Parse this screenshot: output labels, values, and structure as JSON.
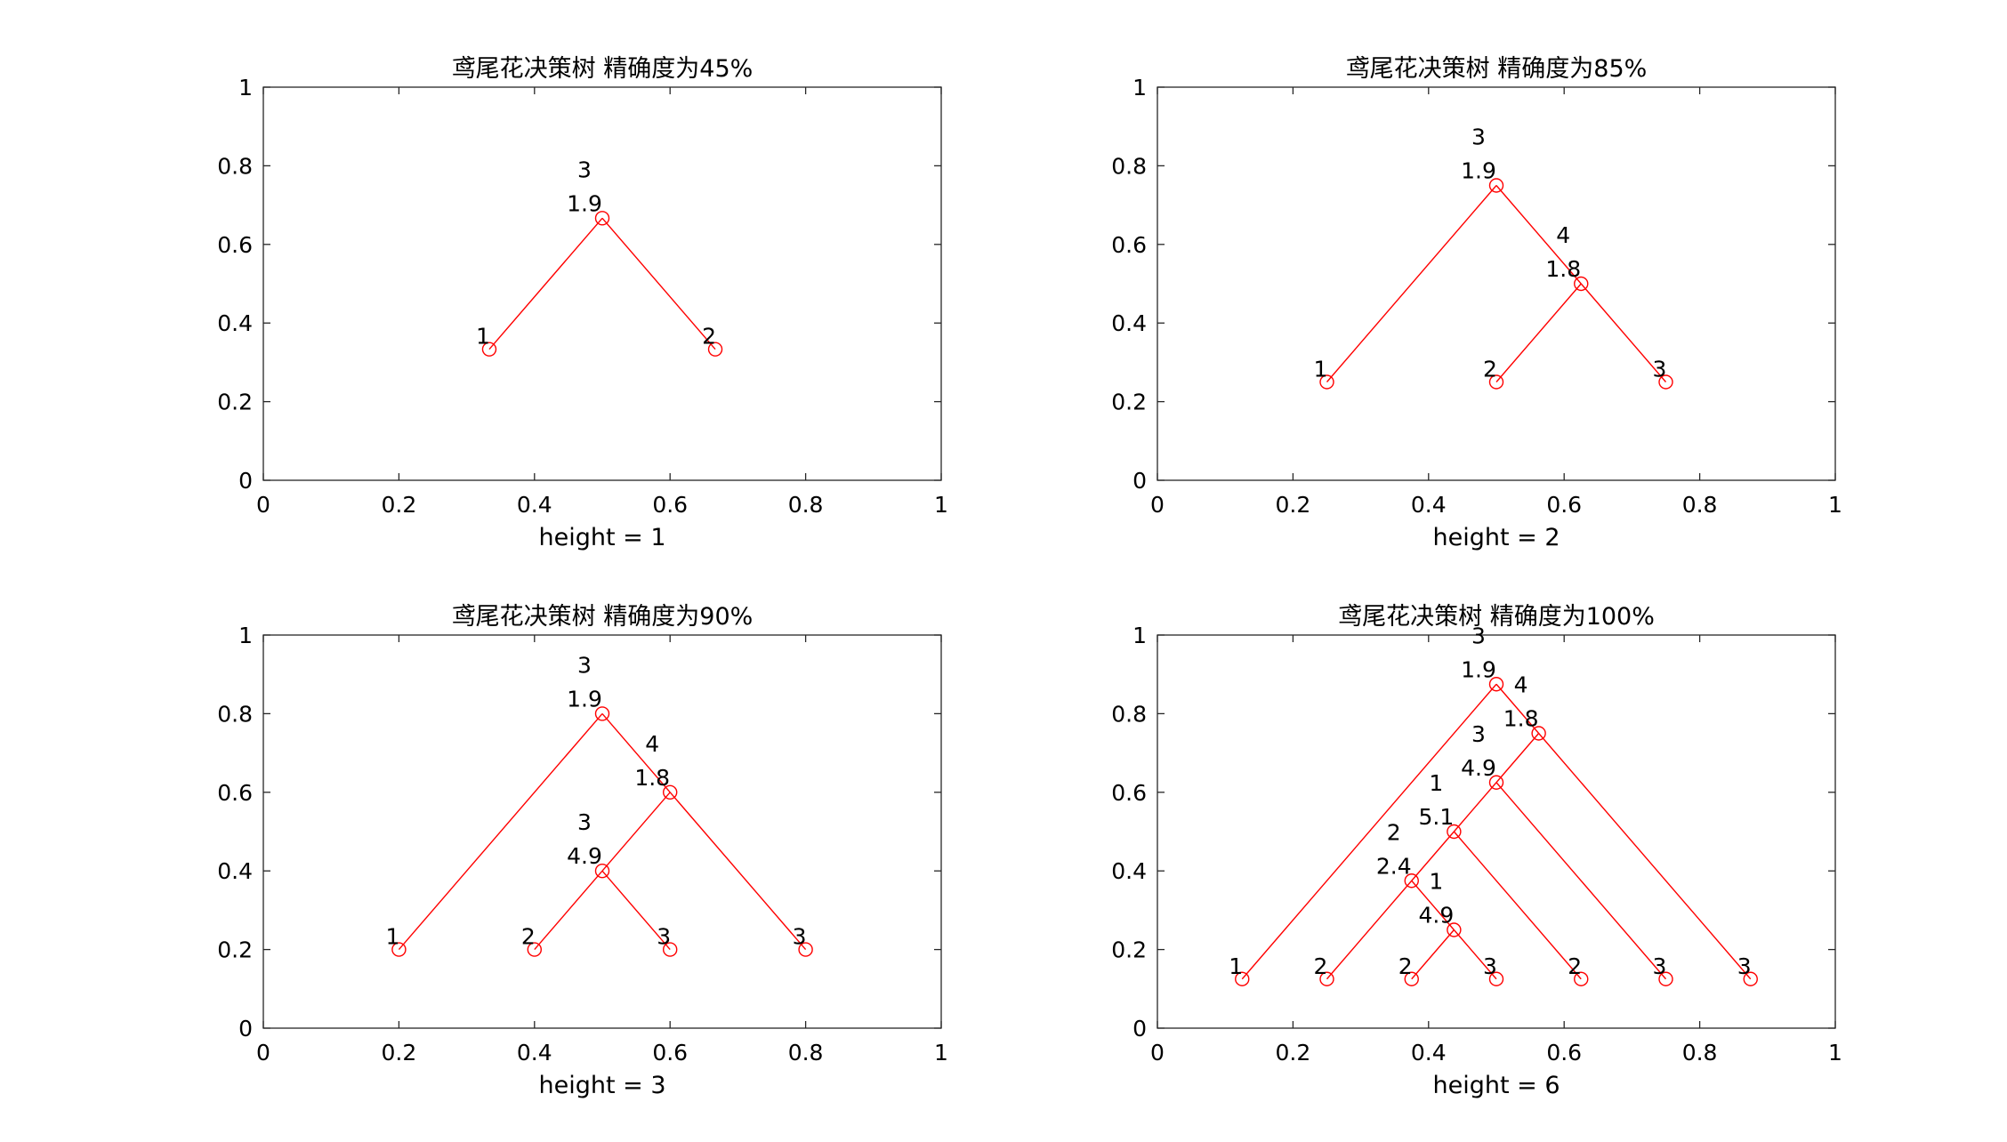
{
  "chart_data": [
    {
      "type": "tree",
      "title": "鸢尾花决策树  精确度为45%",
      "xlabel": "height = 1",
      "ylabel": "",
      "xlim": [
        0,
        1
      ],
      "ylim": [
        0,
        1
      ],
      "xticks": [
        "0",
        "0.2",
        "0.4",
        "0.6",
        "0.8",
        "1"
      ],
      "yticks": [
        "0",
        "0.2",
        "0.4",
        "0.6",
        "0.8",
        "1"
      ],
      "grid": false,
      "color": "#ff0000",
      "nodes": [
        {
          "x": 0.5,
          "y": 0.6667,
          "labels": [
            "3",
            "1.9"
          ]
        },
        {
          "x": 0.3333,
          "y": 0.3333,
          "labels": [
            "1"
          ]
        },
        {
          "x": 0.6667,
          "y": 0.3333,
          "labels": [
            "2"
          ]
        }
      ],
      "edges": [
        [
          0,
          1
        ],
        [
          0,
          2
        ]
      ]
    },
    {
      "type": "tree",
      "title": "鸢尾花决策树  精确度为85%",
      "xlabel": "height = 2",
      "ylabel": "",
      "xlim": [
        0,
        1
      ],
      "ylim": [
        0,
        1
      ],
      "xticks": [
        "0",
        "0.2",
        "0.4",
        "0.6",
        "0.8",
        "1"
      ],
      "yticks": [
        "0",
        "0.2",
        "0.4",
        "0.6",
        "0.8",
        "1"
      ],
      "grid": false,
      "color": "#ff0000",
      "nodes": [
        {
          "x": 0.5,
          "y": 0.75,
          "labels": [
            "3",
            "1.9"
          ]
        },
        {
          "x": 0.25,
          "y": 0.25,
          "labels": [
            "1"
          ]
        },
        {
          "x": 0.625,
          "y": 0.5,
          "labels": [
            "4",
            "1.8"
          ]
        },
        {
          "x": 0.5,
          "y": 0.25,
          "labels": [
            "2"
          ]
        },
        {
          "x": 0.75,
          "y": 0.25,
          "labels": [
            "3"
          ]
        }
      ],
      "edges": [
        [
          0,
          1
        ],
        [
          0,
          2
        ],
        [
          2,
          3
        ],
        [
          2,
          4
        ]
      ]
    },
    {
      "type": "tree",
      "title": "鸢尾花决策树  精确度为90%",
      "xlabel": "height = 3",
      "ylabel": "",
      "xlim": [
        0,
        1
      ],
      "ylim": [
        0,
        1
      ],
      "xticks": [
        "0",
        "0.2",
        "0.4",
        "0.6",
        "0.8",
        "1"
      ],
      "yticks": [
        "0",
        "0.2",
        "0.4",
        "0.6",
        "0.8",
        "1"
      ],
      "grid": false,
      "color": "#ff0000",
      "nodes": [
        {
          "x": 0.5,
          "y": 0.8,
          "labels": [
            "3",
            "1.9"
          ]
        },
        {
          "x": 0.2,
          "y": 0.2,
          "labels": [
            "1"
          ]
        },
        {
          "x": 0.6,
          "y": 0.6,
          "labels": [
            "4",
            "1.8"
          ]
        },
        {
          "x": 0.5,
          "y": 0.4,
          "labels": [
            "3",
            "4.9"
          ]
        },
        {
          "x": 0.8,
          "y": 0.2,
          "labels": [
            "3"
          ]
        },
        {
          "x": 0.4,
          "y": 0.2,
          "labels": [
            "2"
          ]
        },
        {
          "x": 0.6,
          "y": 0.2,
          "labels": [
            "3"
          ]
        }
      ],
      "edges": [
        [
          0,
          1
        ],
        [
          0,
          2
        ],
        [
          2,
          3
        ],
        [
          2,
          4
        ],
        [
          3,
          5
        ],
        [
          3,
          6
        ]
      ]
    },
    {
      "type": "tree",
      "title": "鸢尾花决策树  精确度为100%",
      "xlabel": "height = 6",
      "ylabel": "",
      "xlim": [
        0,
        1
      ],
      "ylim": [
        0,
        1
      ],
      "xticks": [
        "0",
        "0.2",
        "0.4",
        "0.6",
        "0.8",
        "1"
      ],
      "yticks": [
        "0",
        "0.2",
        "0.4",
        "0.6",
        "0.8",
        "1"
      ],
      "grid": false,
      "color": "#ff0000",
      "nodes": [
        {
          "x": 0.5,
          "y": 0.875,
          "labels": [
            "3",
            "1.9"
          ]
        },
        {
          "x": 0.125,
          "y": 0.125,
          "labels": [
            "1"
          ]
        },
        {
          "x": 0.5625,
          "y": 0.75,
          "labels": [
            "4",
            "1.8"
          ]
        },
        {
          "x": 0.5,
          "y": 0.625,
          "labels": [
            "3",
            "4.9"
          ]
        },
        {
          "x": 0.875,
          "y": 0.125,
          "labels": [
            "3"
          ]
        },
        {
          "x": 0.4375,
          "y": 0.5,
          "labels": [
            "1",
            "5.1"
          ]
        },
        {
          "x": 0.75,
          "y": 0.125,
          "labels": [
            "3"
          ]
        },
        {
          "x": 0.375,
          "y": 0.375,
          "labels": [
            "2",
            "2.4"
          ]
        },
        {
          "x": 0.625,
          "y": 0.125,
          "labels": [
            "2"
          ]
        },
        {
          "x": 0.25,
          "y": 0.125,
          "labels": [
            "2"
          ]
        },
        {
          "x": 0.4375,
          "y": 0.25,
          "labels": [
            "1",
            "4.9"
          ]
        },
        {
          "x": 0.375,
          "y": 0.125,
          "labels": [
            "2"
          ]
        },
        {
          "x": 0.5,
          "y": 0.125,
          "labels": [
            "3"
          ]
        }
      ],
      "edges": [
        [
          0,
          1
        ],
        [
          0,
          2
        ],
        [
          2,
          3
        ],
        [
          2,
          4
        ],
        [
          3,
          5
        ],
        [
          3,
          6
        ],
        [
          5,
          7
        ],
        [
          5,
          8
        ],
        [
          7,
          9
        ],
        [
          7,
          10
        ],
        [
          10,
          11
        ],
        [
          10,
          12
        ]
      ]
    }
  ]
}
